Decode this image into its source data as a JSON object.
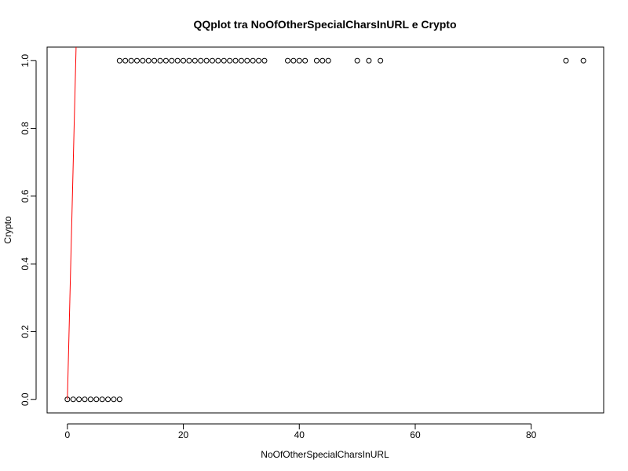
{
  "chart_data": {
    "type": "scatter",
    "title": "QQplot tra NoOfOtherSpecialCharsInURL e Crypto",
    "xlabel": "NoOfOtherSpecialCharsInURL",
    "ylabel": "Crypto",
    "xlim": [
      -3.5,
      92.5
    ],
    "ylim": [
      -0.04,
      1.04
    ],
    "x_ticks": [
      0,
      20,
      40,
      60,
      80
    ],
    "y_ticks": [
      0.0,
      0.2,
      0.4,
      0.6,
      0.8,
      1.0
    ],
    "x_tick_labels": [
      "0",
      "20",
      "40",
      "60",
      "80"
    ],
    "y_tick_labels": [
      "0.0",
      "0.2",
      "0.4",
      "0.6",
      "0.8",
      "1.0"
    ],
    "grid": false,
    "legend": "none",
    "marker": "open-circle",
    "point_color": "#000000",
    "series": [
      {
        "x": [
          0,
          1,
          2,
          3,
          4,
          5,
          6,
          7,
          8,
          9
        ],
        "y": [
          0,
          0,
          0,
          0,
          0,
          0,
          0,
          0,
          0,
          0
        ]
      },
      {
        "x": [
          9,
          10,
          11,
          12,
          13,
          14,
          15,
          16,
          17,
          18,
          19,
          20,
          21,
          22,
          23,
          24,
          25,
          26,
          27,
          28,
          29,
          30,
          31,
          32,
          33,
          34,
          38,
          39,
          40,
          41,
          43,
          44,
          45,
          50,
          52,
          54,
          86,
          89
        ],
        "y": [
          1,
          1,
          1,
          1,
          1,
          1,
          1,
          1,
          1,
          1,
          1,
          1,
          1,
          1,
          1,
          1,
          1,
          1,
          1,
          1,
          1,
          1,
          1,
          1,
          1,
          1,
          1,
          1,
          1,
          1,
          1,
          1,
          1,
          1,
          1,
          1,
          1,
          1
        ]
      }
    ],
    "reference_line": {
      "color": "#ff0000",
      "points": [
        [
          0,
          0
        ],
        [
          1.5,
          1.04
        ]
      ]
    }
  }
}
